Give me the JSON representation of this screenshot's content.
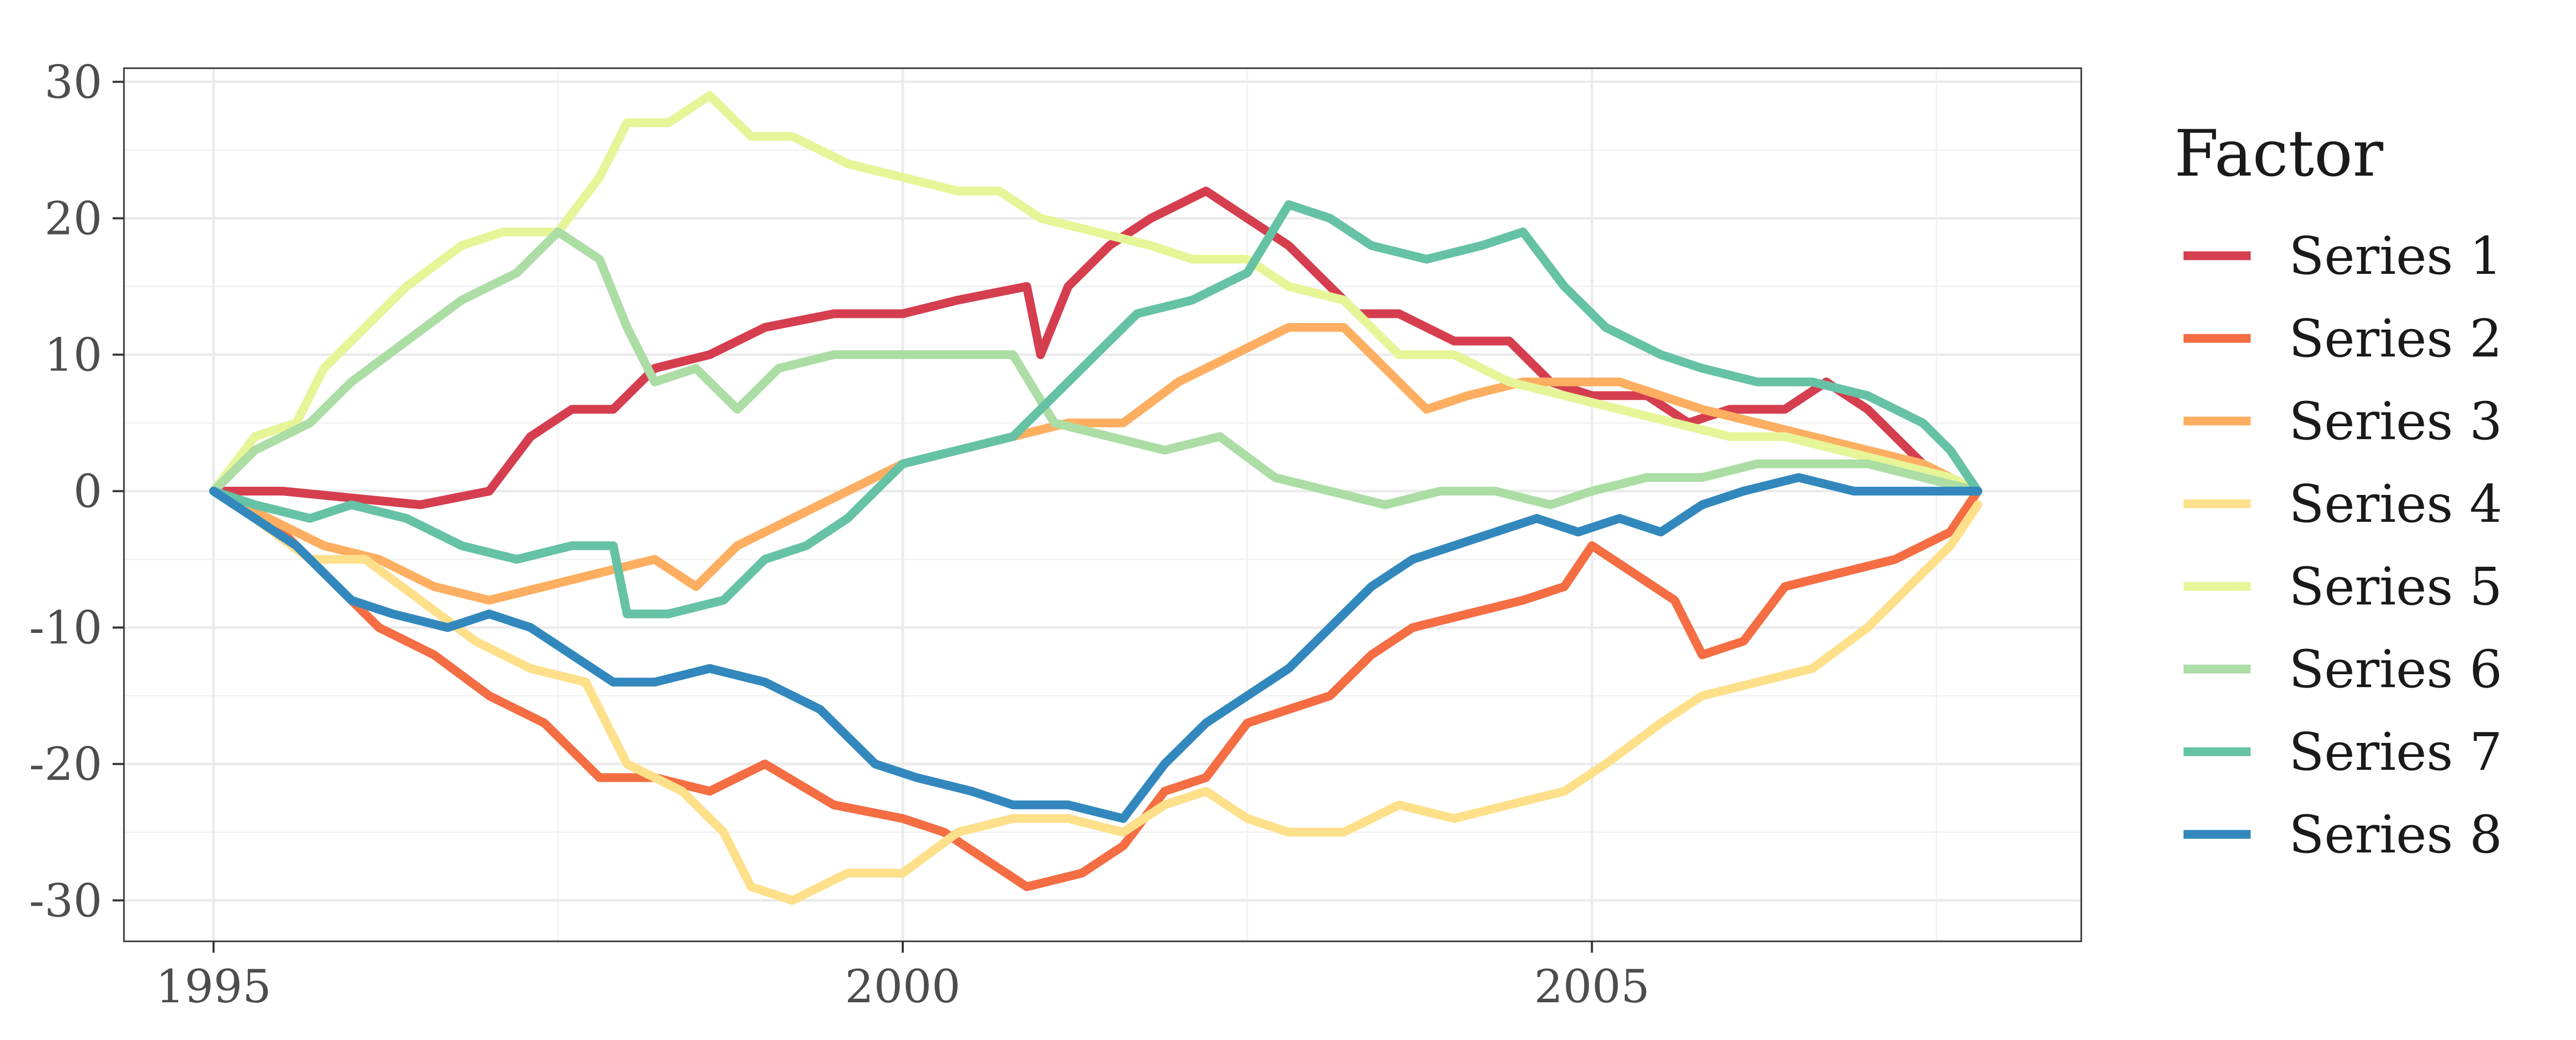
{
  "chart_data": {
    "type": "line",
    "title": "",
    "xlabel": "",
    "ylabel": "",
    "xlim": [
      1994.35,
      2008.55
    ],
    "ylim": [
      -33,
      31
    ],
    "x_ticks": [
      1995,
      2000,
      2005
    ],
    "x_tick_labels": [
      "1995",
      "2000",
      "2005"
    ],
    "y_ticks": [
      30,
      20,
      10,
      0,
      -10,
      -20,
      -30
    ],
    "y_tick_labels": [
      "30",
      "20",
      "10",
      "0",
      "-10",
      "-20",
      "-30"
    ],
    "grid": true,
    "legend": {
      "title": "Factor",
      "position": "right"
    },
    "series": [
      {
        "name": "Series 1",
        "color": "#d53e4f",
        "points": [
          [
            1995,
            0
          ],
          [
            1995.5,
            0
          ],
          [
            1996,
            -0.5
          ],
          [
            1996.5,
            -1
          ],
          [
            1997,
            0
          ],
          [
            1997.3,
            4
          ],
          [
            1997.6,
            6
          ],
          [
            1997.9,
            6
          ],
          [
            1998.2,
            9
          ],
          [
            1998.6,
            10
          ],
          [
            1999,
            12
          ],
          [
            1999.5,
            13
          ],
          [
            2000,
            13
          ],
          [
            2000.4,
            14
          ],
          [
            2000.9,
            15
          ],
          [
            2001,
            10
          ],
          [
            2001.2,
            15
          ],
          [
            2001.5,
            18
          ],
          [
            2001.8,
            20
          ],
          [
            2002,
            21
          ],
          [
            2002.2,
            22
          ],
          [
            2002.5,
            20
          ],
          [
            2002.8,
            18
          ],
          [
            2003.1,
            15
          ],
          [
            2003.3,
            13
          ],
          [
            2003.6,
            13
          ],
          [
            2004,
            11
          ],
          [
            2004.4,
            11
          ],
          [
            2004.7,
            8
          ],
          [
            2005,
            7
          ],
          [
            2005.4,
            7
          ],
          [
            2005.7,
            5
          ],
          [
            2006,
            6
          ],
          [
            2006.4,
            6
          ],
          [
            2006.7,
            8
          ],
          [
            2007,
            6
          ],
          [
            2007.4,
            2
          ],
          [
            2007.6,
            1
          ],
          [
            2007.8,
            0
          ]
        ]
      },
      {
        "name": "Series 2",
        "color": "#f46d43",
        "points": [
          [
            1995,
            0
          ],
          [
            1995.4,
            -2
          ],
          [
            1995.8,
            -6
          ],
          [
            1996.2,
            -10
          ],
          [
            1996.6,
            -12
          ],
          [
            1997,
            -15
          ],
          [
            1997.4,
            -17
          ],
          [
            1997.8,
            -21
          ],
          [
            1998.2,
            -21
          ],
          [
            1998.6,
            -22
          ],
          [
            1999,
            -20
          ],
          [
            1999.5,
            -23
          ],
          [
            2000,
            -24
          ],
          [
            2000.3,
            -25
          ],
          [
            2000.6,
            -27
          ],
          [
            2000.9,
            -29
          ],
          [
            2001.3,
            -28
          ],
          [
            2001.6,
            -26
          ],
          [
            2001.9,
            -22
          ],
          [
            2002.2,
            -21
          ],
          [
            2002.5,
            -17
          ],
          [
            2002.8,
            -16
          ],
          [
            2003.1,
            -15
          ],
          [
            2003.4,
            -12
          ],
          [
            2003.7,
            -10
          ],
          [
            2004.1,
            -9
          ],
          [
            2004.5,
            -8
          ],
          [
            2004.8,
            -7
          ],
          [
            2005,
            -4
          ],
          [
            2005.3,
            -6
          ],
          [
            2005.6,
            -8
          ],
          [
            2005.8,
            -12
          ],
          [
            2006.1,
            -11
          ],
          [
            2006.4,
            -7
          ],
          [
            2006.8,
            -6
          ],
          [
            2007.2,
            -5
          ],
          [
            2007.6,
            -3
          ],
          [
            2007.8,
            0
          ]
        ]
      },
      {
        "name": "Series 3",
        "color": "#fdae61",
        "points": [
          [
            1995,
            0
          ],
          [
            1995.4,
            -2
          ],
          [
            1995.8,
            -4
          ],
          [
            1996.2,
            -5
          ],
          [
            1996.6,
            -7
          ],
          [
            1997,
            -8
          ],
          [
            1997.4,
            -7
          ],
          [
            1997.8,
            -6
          ],
          [
            1998.2,
            -5
          ],
          [
            1998.5,
            -7
          ],
          [
            1998.8,
            -4
          ],
          [
            1999.2,
            -2
          ],
          [
            1999.6,
            0
          ],
          [
            2000,
            2
          ],
          [
            2000.4,
            3
          ],
          [
            2000.8,
            4
          ],
          [
            2001.2,
            5
          ],
          [
            2001.6,
            5
          ],
          [
            2002,
            8
          ],
          [
            2002.4,
            10
          ],
          [
            2002.8,
            12
          ],
          [
            2003.2,
            12
          ],
          [
            2003.5,
            9
          ],
          [
            2003.8,
            6
          ],
          [
            2004.1,
            7
          ],
          [
            2004.5,
            8
          ],
          [
            2004.8,
            8
          ],
          [
            2005.2,
            8
          ],
          [
            2005.5,
            7
          ],
          [
            2005.8,
            6
          ],
          [
            2006.2,
            5
          ],
          [
            2006.6,
            4
          ],
          [
            2007,
            3
          ],
          [
            2007.4,
            2
          ],
          [
            2007.8,
            0
          ]
        ]
      },
      {
        "name": "Series 4",
        "color": "#fee08b",
        "points": [
          [
            1995,
            0
          ],
          [
            1995.3,
            -2
          ],
          [
            1995.7,
            -5
          ],
          [
            1996.1,
            -5
          ],
          [
            1996.5,
            -8
          ],
          [
            1996.9,
            -11
          ],
          [
            1997.3,
            -13
          ],
          [
            1997.7,
            -14
          ],
          [
            1998,
            -20
          ],
          [
            1998.4,
            -22
          ],
          [
            1998.7,
            -25
          ],
          [
            1998.9,
            -29
          ],
          [
            1999.2,
            -30
          ],
          [
            1999.6,
            -28
          ],
          [
            2000,
            -28
          ],
          [
            2000.4,
            -25
          ],
          [
            2000.8,
            -24
          ],
          [
            2001.2,
            -24
          ],
          [
            2001.6,
            -25
          ],
          [
            2001.9,
            -23
          ],
          [
            2002.2,
            -22
          ],
          [
            2002.5,
            -24
          ],
          [
            2002.8,
            -25
          ],
          [
            2003.2,
            -25
          ],
          [
            2003.6,
            -23
          ],
          [
            2004,
            -24
          ],
          [
            2004.4,
            -23
          ],
          [
            2004.8,
            -22
          ],
          [
            2005.1,
            -20
          ],
          [
            2005.5,
            -17
          ],
          [
            2005.8,
            -15
          ],
          [
            2006.2,
            -14
          ],
          [
            2006.6,
            -13
          ],
          [
            2007,
            -10
          ],
          [
            2007.3,
            -7
          ],
          [
            2007.6,
            -4
          ],
          [
            2007.8,
            -1
          ]
        ]
      },
      {
        "name": "Series 5",
        "color": "#e6f598",
        "points": [
          [
            1995,
            0
          ],
          [
            1995.3,
            4
          ],
          [
            1995.6,
            5
          ],
          [
            1995.8,
            9
          ],
          [
            1996.1,
            12
          ],
          [
            1996.4,
            15
          ],
          [
            1996.8,
            18
          ],
          [
            1997.1,
            19
          ],
          [
            1997.5,
            19
          ],
          [
            1997.8,
            23
          ],
          [
            1998,
            27
          ],
          [
            1998.3,
            27
          ],
          [
            1998.6,
            29
          ],
          [
            1998.9,
            26
          ],
          [
            1999.2,
            26
          ],
          [
            1999.6,
            24
          ],
          [
            2000,
            23
          ],
          [
            2000.4,
            22
          ],
          [
            2000.7,
            22
          ],
          [
            2001,
            20
          ],
          [
            2001.4,
            19
          ],
          [
            2001.8,
            18
          ],
          [
            2002.1,
            17
          ],
          [
            2002.5,
            17
          ],
          [
            2002.8,
            15
          ],
          [
            2003.2,
            14
          ],
          [
            2003.6,
            10
          ],
          [
            2004,
            10
          ],
          [
            2004.4,
            8
          ],
          [
            2004.8,
            7
          ],
          [
            2005.2,
            6
          ],
          [
            2005.6,
            5
          ],
          [
            2006,
            4
          ],
          [
            2006.4,
            4
          ],
          [
            2006.8,
            3
          ],
          [
            2007.2,
            2
          ],
          [
            2007.6,
            1
          ],
          [
            2007.8,
            0
          ]
        ]
      },
      {
        "name": "Series 6",
        "color": "#abdda4",
        "points": [
          [
            1995,
            0
          ],
          [
            1995.3,
            3
          ],
          [
            1995.7,
            5
          ],
          [
            1996,
            8
          ],
          [
            1996.4,
            11
          ],
          [
            1996.8,
            14
          ],
          [
            1997.2,
            16
          ],
          [
            1997.5,
            19
          ],
          [
            1997.8,
            17
          ],
          [
            1998,
            12
          ],
          [
            1998.2,
            8
          ],
          [
            1998.5,
            9
          ],
          [
            1998.8,
            6
          ],
          [
            1999.1,
            9
          ],
          [
            1999.5,
            10
          ],
          [
            2000,
            10
          ],
          [
            2000.4,
            10
          ],
          [
            2000.8,
            10
          ],
          [
            2001.1,
            5
          ],
          [
            2001.5,
            4
          ],
          [
            2001.9,
            3
          ],
          [
            2002.3,
            4
          ],
          [
            2002.7,
            1
          ],
          [
            2003.1,
            0
          ],
          [
            2003.5,
            -1
          ],
          [
            2003.9,
            0
          ],
          [
            2004.3,
            0
          ],
          [
            2004.7,
            -1
          ],
          [
            2005,
            0
          ],
          [
            2005.4,
            1
          ],
          [
            2005.8,
            1
          ],
          [
            2006.2,
            2
          ],
          [
            2006.6,
            2
          ],
          [
            2007,
            2
          ],
          [
            2007.4,
            1
          ],
          [
            2007.8,
            0
          ]
        ]
      },
      {
        "name": "Series 7",
        "color": "#66c2a5",
        "points": [
          [
            1995,
            0
          ],
          [
            1995.3,
            -1
          ],
          [
            1995.7,
            -2
          ],
          [
            1996,
            -1
          ],
          [
            1996.4,
            -2
          ],
          [
            1996.8,
            -4
          ],
          [
            1997.2,
            -5
          ],
          [
            1997.6,
            -4
          ],
          [
            1997.9,
            -4
          ],
          [
            1998,
            -9
          ],
          [
            1998.3,
            -9
          ],
          [
            1998.7,
            -8
          ],
          [
            1999,
            -5
          ],
          [
            1999.3,
            -4
          ],
          [
            1999.6,
            -2
          ],
          [
            2000,
            2
          ],
          [
            2000.4,
            3
          ],
          [
            2000.8,
            4
          ],
          [
            2001.1,
            7
          ],
          [
            2001.4,
            10
          ],
          [
            2001.7,
            13
          ],
          [
            2002.1,
            14
          ],
          [
            2002.5,
            16
          ],
          [
            2002.8,
            21
          ],
          [
            2003.1,
            20
          ],
          [
            2003.4,
            18
          ],
          [
            2003.8,
            17
          ],
          [
            2004.2,
            18
          ],
          [
            2004.5,
            19
          ],
          [
            2004.8,
            15
          ],
          [
            2005.1,
            12
          ],
          [
            2005.5,
            10
          ],
          [
            2005.8,
            9
          ],
          [
            2006.2,
            8
          ],
          [
            2006.6,
            8
          ],
          [
            2007,
            7
          ],
          [
            2007.4,
            5
          ],
          [
            2007.6,
            3
          ],
          [
            2007.8,
            0
          ]
        ]
      },
      {
        "name": "Series 8",
        "color": "#3288bd",
        "points": [
          [
            1995,
            0
          ],
          [
            1995.3,
            -2
          ],
          [
            1995.6,
            -4
          ],
          [
            1996,
            -8
          ],
          [
            1996.3,
            -9
          ],
          [
            1996.7,
            -10
          ],
          [
            1997,
            -9
          ],
          [
            1997.3,
            -10
          ],
          [
            1997.6,
            -12
          ],
          [
            1997.9,
            -14
          ],
          [
            1998.2,
            -14
          ],
          [
            1998.6,
            -13
          ],
          [
            1999,
            -14
          ],
          [
            1999.4,
            -16
          ],
          [
            1999.8,
            -20
          ],
          [
            2000.1,
            -21
          ],
          [
            2000.5,
            -22
          ],
          [
            2000.8,
            -23
          ],
          [
            2001.2,
            -23
          ],
          [
            2001.6,
            -24
          ],
          [
            2001.9,
            -20
          ],
          [
            2002.2,
            -17
          ],
          [
            2002.5,
            -15
          ],
          [
            2002.8,
            -13
          ],
          [
            2003.1,
            -10
          ],
          [
            2003.4,
            -7
          ],
          [
            2003.7,
            -5
          ],
          [
            2004,
            -4
          ],
          [
            2004.3,
            -3
          ],
          [
            2004.6,
            -2
          ],
          [
            2004.9,
            -3
          ],
          [
            2005.2,
            -2
          ],
          [
            2005.5,
            -3
          ],
          [
            2005.8,
            -1
          ],
          [
            2006.1,
            0
          ],
          [
            2006.5,
            1
          ],
          [
            2006.9,
            0
          ],
          [
            2007.3,
            0
          ],
          [
            2007.6,
            0
          ],
          [
            2007.8,
            0
          ]
        ]
      }
    ]
  }
}
